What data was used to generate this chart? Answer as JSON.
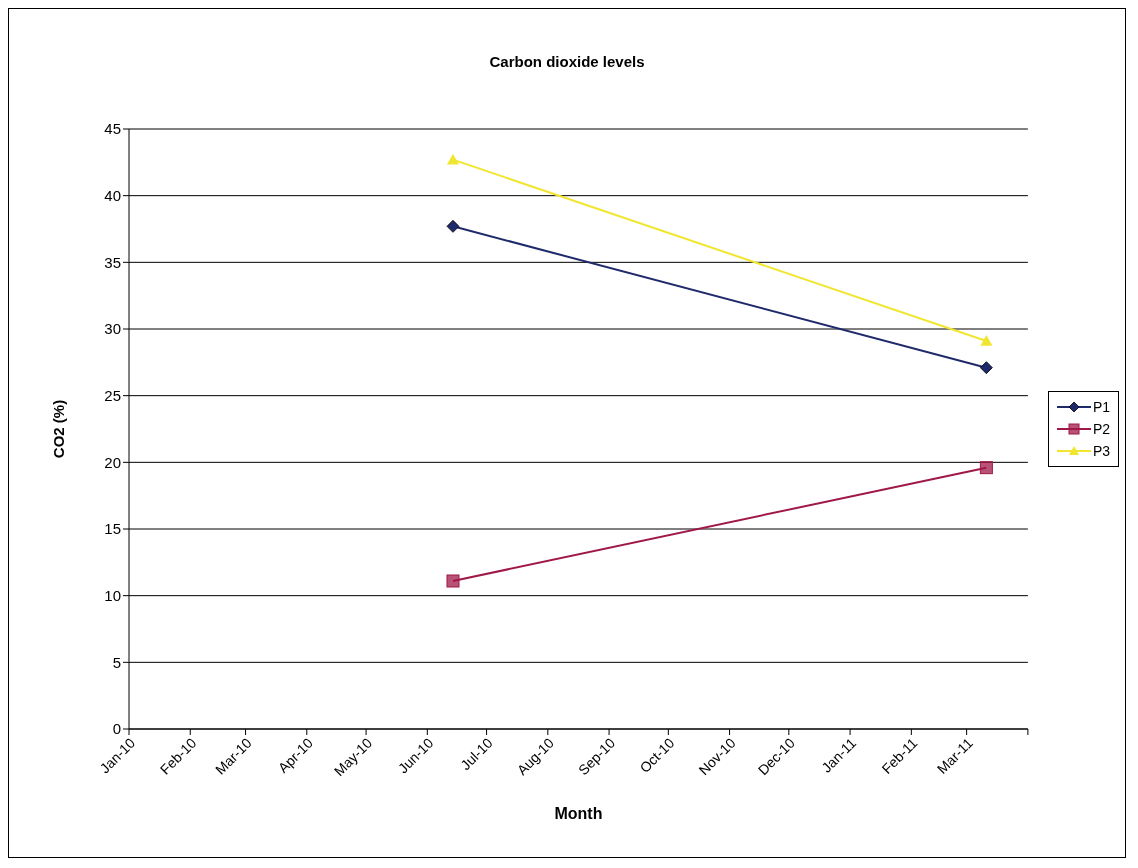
{
  "chart_data": {
    "type": "line",
    "title": "Carbon dioxide levels",
    "xlabel": "Month",
    "ylabel": "CO2 (%)",
    "x": [
      "2010-06-14",
      "2011-03-11"
    ],
    "series": [
      {
        "name": "P1",
        "color": "#1f2a6b",
        "values": [
          37.7,
          27.1
        ],
        "marker": "diamond"
      },
      {
        "name": "P2",
        "color": "#a0184a",
        "values": [
          11.1,
          19.6
        ],
        "marker": "square"
      },
      {
        "name": "P3",
        "color": "#f0e630",
        "values": [
          42.7,
          29.1
        ],
        "marker": "triangle"
      }
    ],
    "xlim": [
      "2010-01-01",
      "2011-04-01"
    ],
    "xticks": [
      {
        "value": "2010-01-01",
        "label": "Jan-10"
      },
      {
        "value": "2010-02-01",
        "label": "Feb-10"
      },
      {
        "value": "2010-03-01",
        "label": "Mar-10"
      },
      {
        "value": "2010-04-01",
        "label": "Apr-10"
      },
      {
        "value": "2010-05-01",
        "label": "May-10"
      },
      {
        "value": "2010-06-01",
        "label": "Jun-10"
      },
      {
        "value": "2010-07-01",
        "label": "Jul-10"
      },
      {
        "value": "2010-08-01",
        "label": "Aug-10"
      },
      {
        "value": "2010-09-01",
        "label": "Sep-10"
      },
      {
        "value": "2010-10-01",
        "label": "Oct-10"
      },
      {
        "value": "2010-11-01",
        "label": "Nov-10"
      },
      {
        "value": "2010-12-01",
        "label": "Dec-10"
      },
      {
        "value": "2011-01-01",
        "label": "Jan-11"
      },
      {
        "value": "2011-02-01",
        "label": "Feb-11"
      },
      {
        "value": "2011-03-01",
        "label": "Mar-11"
      },
      {
        "value": "2011-04-01",
        "label": null
      }
    ],
    "ylim": [
      0,
      45
    ],
    "yticks": [
      0,
      5,
      10,
      15,
      20,
      25,
      30,
      35,
      40,
      45
    ],
    "grid": "y",
    "legend": "right",
    "line_style": "solid"
  }
}
